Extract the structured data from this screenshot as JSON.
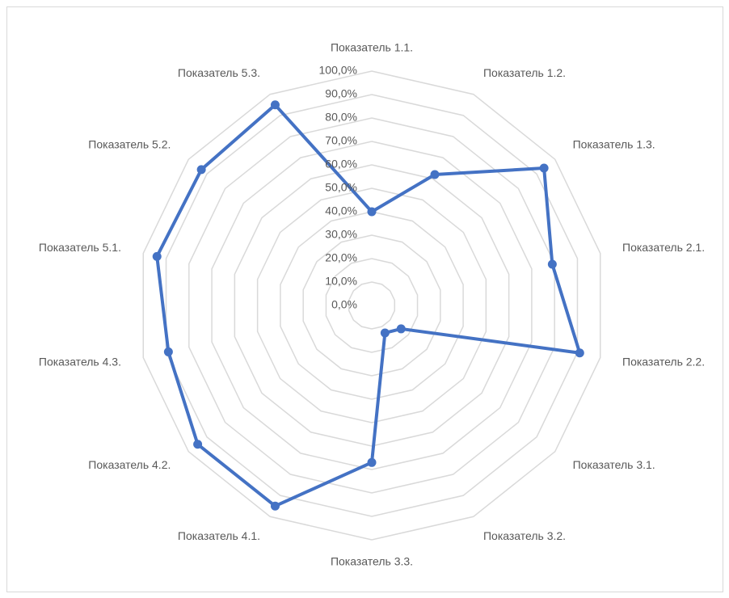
{
  "chart_data": {
    "type": "radar",
    "categories": [
      "Показатель 1.1.",
      "Показатель 1.2.",
      "Показатель 1.3.",
      "Показатель 2.1.",
      "Показатель 2.2.",
      "Показатель 3.1.",
      "Показатель 3.2.",
      "Показатель 3.3.",
      "Показатель 4.1.",
      "Показатель 4.2.",
      "Показатель 4.3.",
      "Показатель 5.1.",
      "Показатель 5.2.",
      "Показатель 5.3."
    ],
    "values": [
      40,
      62,
      94,
      79,
      91,
      16,
      13,
      67,
      95,
      95,
      89,
      94,
      93,
      95
    ],
    "color": "#4472c4",
    "ylim": [
      0,
      100
    ],
    "yticks": [
      {
        "value": 0,
        "label": "0,0%"
      },
      {
        "value": 10,
        "label": "10,0%"
      },
      {
        "value": 20,
        "label": "20,0%"
      },
      {
        "value": 30,
        "label": "30,0%"
      },
      {
        "value": 40,
        "label": "40,0%"
      },
      {
        "value": 50,
        "label": "50,0%"
      },
      {
        "value": 60,
        "label": "60,0%"
      },
      {
        "value": 70,
        "label": "70,0%"
      },
      {
        "value": 80,
        "label": "80,0%"
      },
      {
        "value": 90,
        "label": "90,0%"
      },
      {
        "value": 100,
        "label": "100,0%"
      }
    ],
    "grid": true
  }
}
